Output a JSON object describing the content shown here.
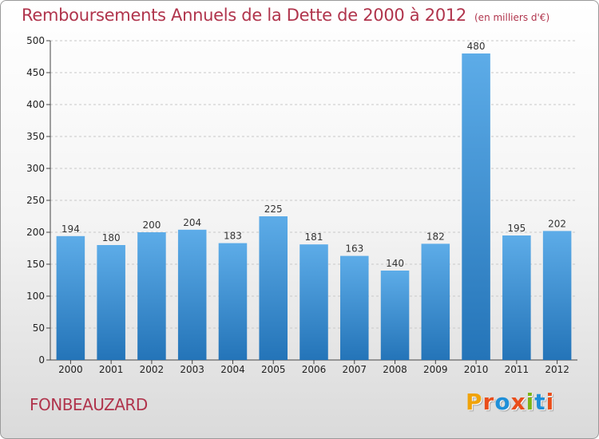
{
  "header": {
    "title": "Remboursements Annuels de la Dette de 2000 à 2012",
    "unit_note": "(en milliers d'€)"
  },
  "footer": {
    "city": "FONBEAUZARD",
    "logo_text": "Proxiti",
    "logo_colors": [
      "#f0a30a",
      "#e94e1b",
      "#1f8fd8",
      "#e94e1b",
      "#7cb518",
      "#1f8fd8",
      "#e94e1b"
    ]
  },
  "chart_data": {
    "type": "bar",
    "title": "Remboursements Annuels de la Dette de 2000 à 2012",
    "xlabel": "",
    "ylabel": "",
    "categories": [
      "2000",
      "2001",
      "2002",
      "2003",
      "2004",
      "2005",
      "2006",
      "2007",
      "2008",
      "2009",
      "2010",
      "2011",
      "2012"
    ],
    "values": [
      194,
      180,
      200,
      204,
      183,
      225,
      181,
      163,
      140,
      182,
      480,
      195,
      202
    ],
    "ylim": [
      0,
      500
    ],
    "yticks": [
      0,
      50,
      100,
      150,
      200,
      250,
      300,
      350,
      400,
      450,
      500
    ],
    "grid": true,
    "bar_color": "#3d8fd4",
    "bar_color_light": "#5dace8",
    "bar_color_dark": "#2474b8"
  }
}
